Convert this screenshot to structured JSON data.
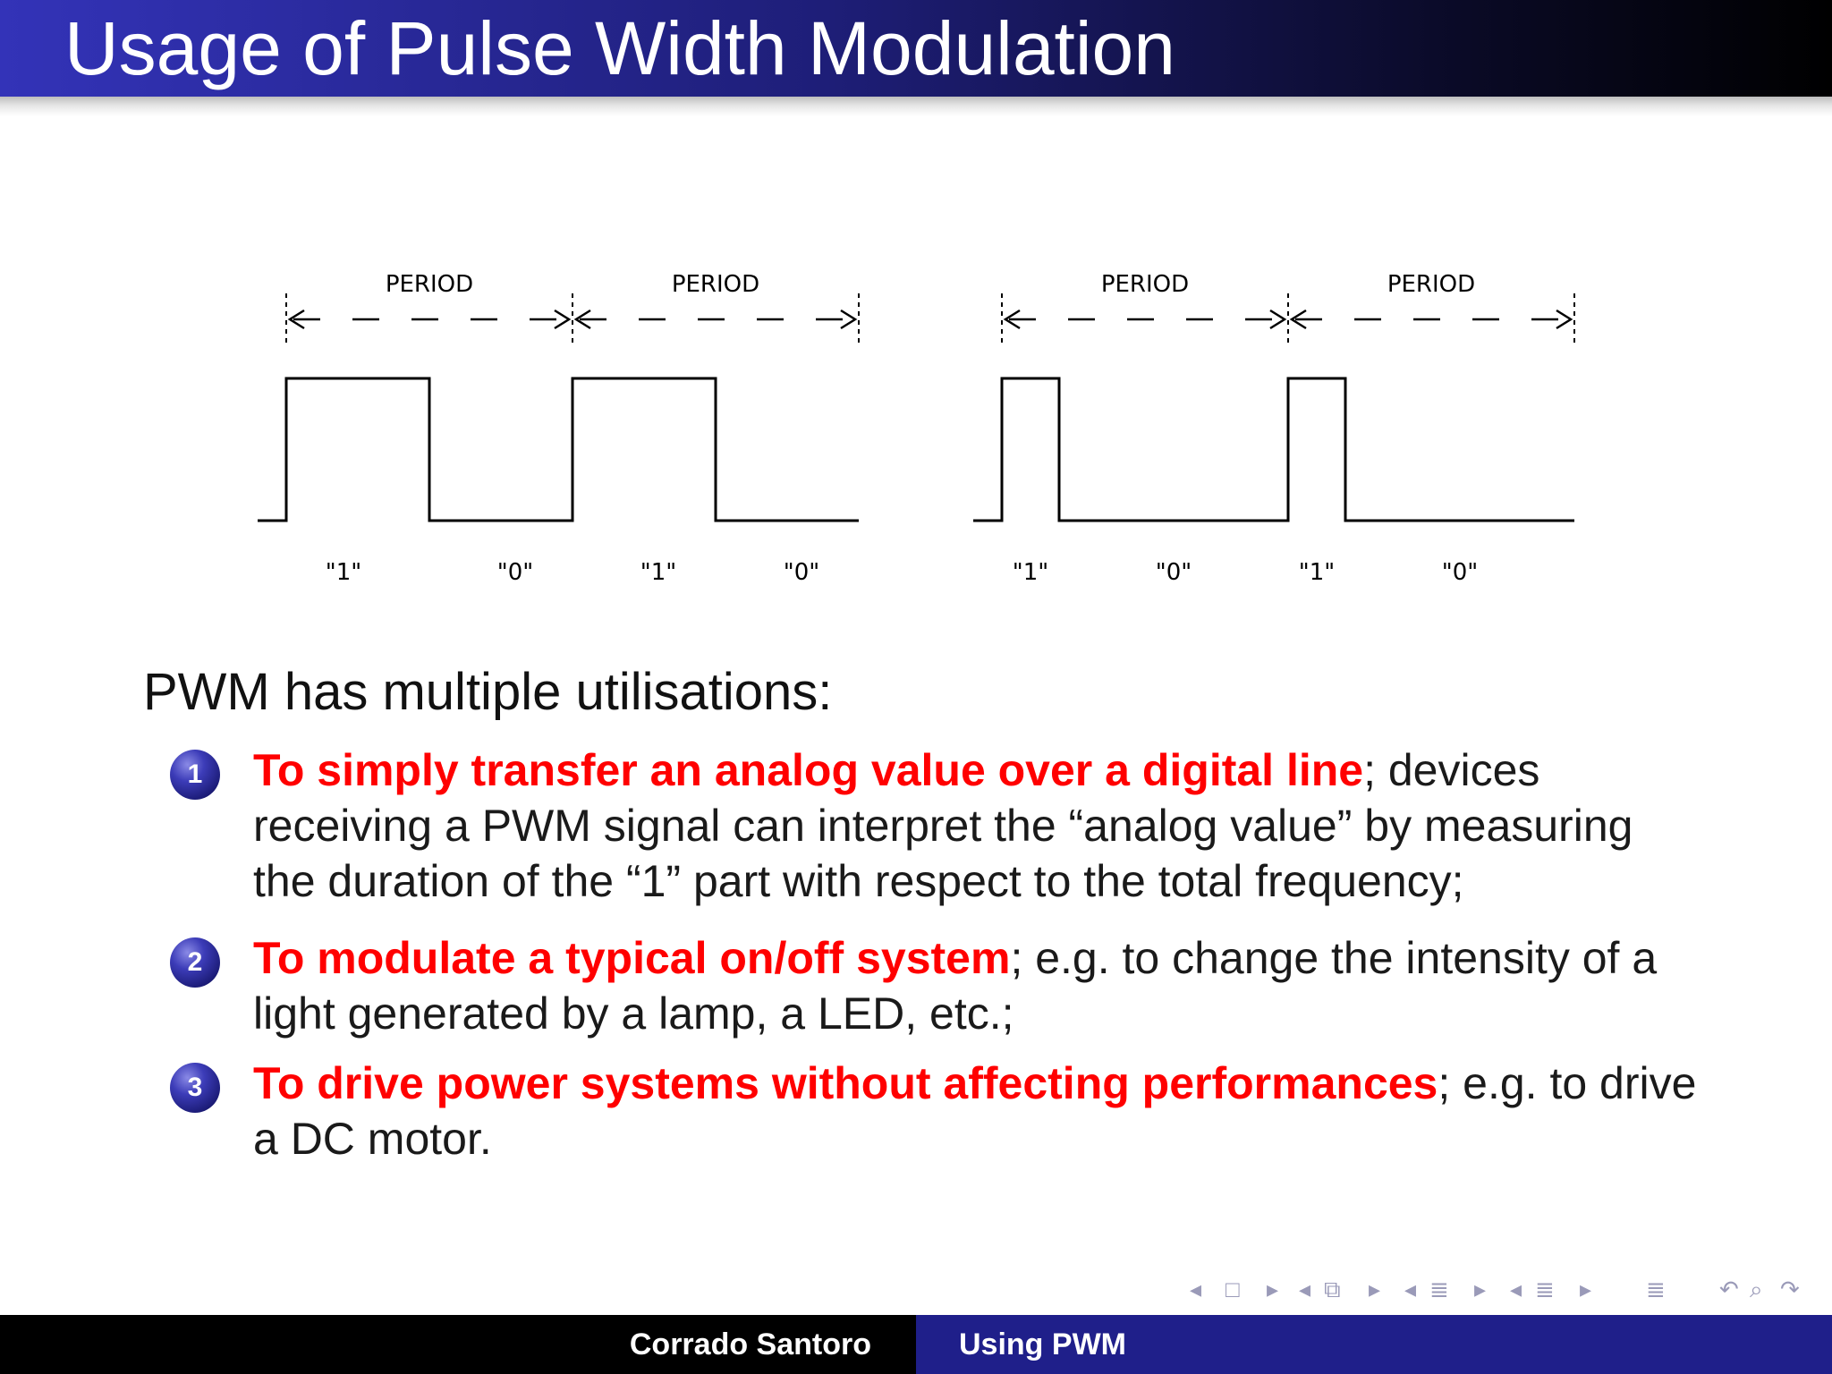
{
  "slide": {
    "title": "Usage of Pulse Width Modulation"
  },
  "diagram": {
    "period_label": "PERIOD",
    "high_label": "\"1\"",
    "low_label": "\"0\"",
    "left_duty_cycle": 0.5,
    "right_duty_cycle": 0.2,
    "periods_per_waveform": 2
  },
  "content": {
    "intro": "PWM has multiple utilisations:",
    "items": [
      {
        "number": "1",
        "highlight": "To simply transfer an analog value over a digital line",
        "rest": "; devices receiving a PWM signal can interpret the “analog value” by measuring the duration of the “1” part with respect to the total frequency;"
      },
      {
        "number": "2",
        "highlight": "To modulate a typical on/off system",
        "rest": "; e.g. to change the intensity of a light generated by a lamp, a LED, etc.;"
      },
      {
        "number": "3",
        "highlight": "To drive power systems without affecting performances",
        "rest": "; e.g. to drive a DC motor."
      }
    ]
  },
  "navigation": {
    "icons": [
      "nav-prev-frame-icon",
      "nav-frame-icon",
      "nav-next-frame-icon",
      "nav-prev-subsection-icon",
      "nav-subsection-icon",
      "nav-next-subsection-icon",
      "nav-prev-section-icon",
      "nav-section-icon",
      "nav-next-section-icon",
      "nav-prev-part-icon",
      "nav-part-icon",
      "nav-next-part-icon",
      "nav-toc-icon",
      "undo-icon",
      "search-icon",
      "redo-icon"
    ]
  },
  "footer": {
    "author": "Corrado Santoro",
    "short_title": "Using PWM"
  }
}
